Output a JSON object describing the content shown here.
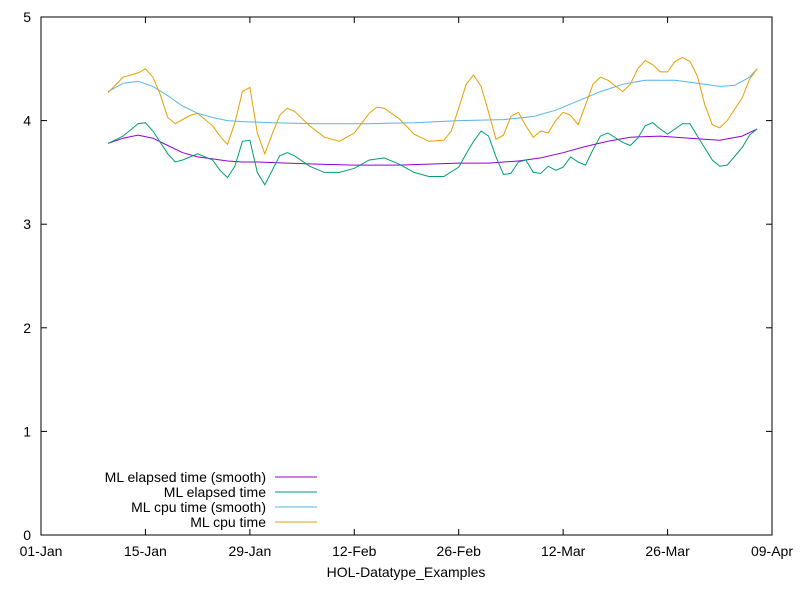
{
  "chart_data": {
    "type": "line",
    "xlabel": "HOL-Datatype_Examples",
    "ylabel": "",
    "x_type": "date",
    "xlim": [
      "2017-01-01",
      "2017-04-09"
    ],
    "ylim": [
      0,
      5
    ],
    "grid": false,
    "legend_position": "bottom-left",
    "x_ticks": [
      {
        "date": "2017-01-01",
        "label": "01-Jan"
      },
      {
        "date": "2017-01-15",
        "label": "15-Jan"
      },
      {
        "date": "2017-01-29",
        "label": "29-Jan"
      },
      {
        "date": "2017-02-12",
        "label": "12-Feb"
      },
      {
        "date": "2017-02-26",
        "label": "26-Feb"
      },
      {
        "date": "2017-03-12",
        "label": "12-Mar"
      },
      {
        "date": "2017-03-26",
        "label": "26-Mar"
      },
      {
        "date": "2017-04-09",
        "label": "09-Apr"
      }
    ],
    "y_ticks": [
      0,
      1,
      2,
      3,
      4,
      5
    ],
    "series": [
      {
        "name": "ML elapsed time (smooth)",
        "color": "#9400d3",
        "points": [
          [
            "2017-01-10",
            3.78
          ],
          [
            "2017-01-12",
            3.83
          ],
          [
            "2017-01-14",
            3.86
          ],
          [
            "2017-01-16",
            3.83
          ],
          [
            "2017-01-18",
            3.76
          ],
          [
            "2017-01-20",
            3.69
          ],
          [
            "2017-01-22",
            3.65
          ],
          [
            "2017-01-24",
            3.63
          ],
          [
            "2017-01-26",
            3.61
          ],
          [
            "2017-01-28",
            3.6
          ],
          [
            "2017-01-30",
            3.6
          ],
          [
            "2017-02-03",
            3.59
          ],
          [
            "2017-02-07",
            3.58
          ],
          [
            "2017-02-12",
            3.57
          ],
          [
            "2017-02-18",
            3.57
          ],
          [
            "2017-02-22",
            3.58
          ],
          [
            "2017-02-26",
            3.59
          ],
          [
            "2017-03-02",
            3.59
          ],
          [
            "2017-03-06",
            3.61
          ],
          [
            "2017-03-09",
            3.64
          ],
          [
            "2017-03-12",
            3.69
          ],
          [
            "2017-03-15",
            3.75
          ],
          [
            "2017-03-18",
            3.8
          ],
          [
            "2017-03-21",
            3.84
          ],
          [
            "2017-03-25",
            3.85
          ],
          [
            "2017-03-29",
            3.83
          ],
          [
            "2017-04-02",
            3.81
          ],
          [
            "2017-04-05",
            3.85
          ],
          [
            "2017-04-07",
            3.92
          ]
        ]
      },
      {
        "name": "ML elapsed time",
        "color": "#009e73",
        "points": [
          [
            "2017-01-10",
            3.78
          ],
          [
            "2017-01-12",
            3.85
          ],
          [
            "2017-01-14",
            3.97
          ],
          [
            "2017-01-15",
            3.98
          ],
          [
            "2017-01-16",
            3.9
          ],
          [
            "2017-01-18",
            3.68
          ],
          [
            "2017-01-19",
            3.6
          ],
          [
            "2017-01-20",
            3.62
          ],
          [
            "2017-01-22",
            3.68
          ],
          [
            "2017-01-24",
            3.62
          ],
          [
            "2017-01-25",
            3.52
          ],
          [
            "2017-01-26",
            3.45
          ],
          [
            "2017-01-27",
            3.56
          ],
          [
            "2017-01-28",
            3.8
          ],
          [
            "2017-01-29",
            3.81
          ],
          [
            "2017-01-30",
            3.5
          ],
          [
            "2017-01-31",
            3.38
          ],
          [
            "2017-02-01",
            3.52
          ],
          [
            "2017-02-02",
            3.66
          ],
          [
            "2017-02-03",
            3.69
          ],
          [
            "2017-02-04",
            3.66
          ],
          [
            "2017-02-06",
            3.56
          ],
          [
            "2017-02-08",
            3.5
          ],
          [
            "2017-02-10",
            3.5
          ],
          [
            "2017-02-12",
            3.54
          ],
          [
            "2017-02-14",
            3.62
          ],
          [
            "2017-02-16",
            3.64
          ],
          [
            "2017-02-18",
            3.58
          ],
          [
            "2017-02-20",
            3.5
          ],
          [
            "2017-02-22",
            3.46
          ],
          [
            "2017-02-24",
            3.46
          ],
          [
            "2017-02-26",
            3.55
          ],
          [
            "2017-02-27",
            3.68
          ],
          [
            "2017-02-28",
            3.8
          ],
          [
            "2017-03-01",
            3.9
          ],
          [
            "2017-03-02",
            3.85
          ],
          [
            "2017-03-03",
            3.65
          ],
          [
            "2017-03-04",
            3.48
          ],
          [
            "2017-03-05",
            3.49
          ],
          [
            "2017-03-06",
            3.6
          ],
          [
            "2017-03-07",
            3.62
          ],
          [
            "2017-03-08",
            3.5
          ],
          [
            "2017-03-09",
            3.49
          ],
          [
            "2017-03-10",
            3.56
          ],
          [
            "2017-03-11",
            3.52
          ],
          [
            "2017-03-12",
            3.55
          ],
          [
            "2017-03-13",
            3.65
          ],
          [
            "2017-03-14",
            3.6
          ],
          [
            "2017-03-15",
            3.57
          ],
          [
            "2017-03-16",
            3.72
          ],
          [
            "2017-03-17",
            3.85
          ],
          [
            "2017-03-18",
            3.88
          ],
          [
            "2017-03-20",
            3.79
          ],
          [
            "2017-03-21",
            3.76
          ],
          [
            "2017-03-22",
            3.83
          ],
          [
            "2017-03-23",
            3.95
          ],
          [
            "2017-03-24",
            3.98
          ],
          [
            "2017-03-25",
            3.92
          ],
          [
            "2017-03-26",
            3.87
          ],
          [
            "2017-03-28",
            3.97
          ],
          [
            "2017-03-29",
            3.97
          ],
          [
            "2017-03-30",
            3.85
          ],
          [
            "2017-04-01",
            3.62
          ],
          [
            "2017-04-02",
            3.56
          ],
          [
            "2017-04-03",
            3.57
          ],
          [
            "2017-04-05",
            3.74
          ],
          [
            "2017-04-06",
            3.86
          ],
          [
            "2017-04-07",
            3.92
          ]
        ]
      },
      {
        "name": "ML cpu time (smooth)",
        "color": "#56b4e9",
        "points": [
          [
            "2017-01-10",
            4.28
          ],
          [
            "2017-01-12",
            4.36
          ],
          [
            "2017-01-14",
            4.38
          ],
          [
            "2017-01-16",
            4.33
          ],
          [
            "2017-01-18",
            4.24
          ],
          [
            "2017-01-20",
            4.14
          ],
          [
            "2017-01-22",
            4.07
          ],
          [
            "2017-01-24",
            4.03
          ],
          [
            "2017-01-26",
            4.0
          ],
          [
            "2017-01-28",
            3.99
          ],
          [
            "2017-02-01",
            3.98
          ],
          [
            "2017-02-07",
            3.97
          ],
          [
            "2017-02-14",
            3.97
          ],
          [
            "2017-02-20",
            3.98
          ],
          [
            "2017-02-26",
            4.0
          ],
          [
            "2017-03-04",
            4.01
          ],
          [
            "2017-03-08",
            4.04
          ],
          [
            "2017-03-11",
            4.1
          ],
          [
            "2017-03-14",
            4.19
          ],
          [
            "2017-03-17",
            4.28
          ],
          [
            "2017-03-20",
            4.35
          ],
          [
            "2017-03-23",
            4.39
          ],
          [
            "2017-03-27",
            4.39
          ],
          [
            "2017-03-30",
            4.36
          ],
          [
            "2017-04-02",
            4.33
          ],
          [
            "2017-04-04",
            4.34
          ],
          [
            "2017-04-06",
            4.42
          ],
          [
            "2017-04-07",
            4.5
          ]
        ]
      },
      {
        "name": "ML cpu time",
        "color": "#e69f00",
        "points": [
          [
            "2017-01-10",
            4.27
          ],
          [
            "2017-01-12",
            4.42
          ],
          [
            "2017-01-14",
            4.46
          ],
          [
            "2017-01-15",
            4.5
          ],
          [
            "2017-01-16",
            4.42
          ],
          [
            "2017-01-17",
            4.25
          ],
          [
            "2017-01-18",
            4.03
          ],
          [
            "2017-01-19",
            3.97
          ],
          [
            "2017-01-21",
            4.05
          ],
          [
            "2017-01-22",
            4.07
          ],
          [
            "2017-01-24",
            3.95
          ],
          [
            "2017-01-25",
            3.85
          ],
          [
            "2017-01-26",
            3.77
          ],
          [
            "2017-01-27",
            3.98
          ],
          [
            "2017-01-28",
            4.28
          ],
          [
            "2017-01-29",
            4.32
          ],
          [
            "2017-01-30",
            3.88
          ],
          [
            "2017-01-31",
            3.68
          ],
          [
            "2017-02-01",
            3.87
          ],
          [
            "2017-02-02",
            4.05
          ],
          [
            "2017-02-03",
            4.12
          ],
          [
            "2017-02-04",
            4.09
          ],
          [
            "2017-02-06",
            3.95
          ],
          [
            "2017-02-08",
            3.84
          ],
          [
            "2017-02-10",
            3.8
          ],
          [
            "2017-02-12",
            3.88
          ],
          [
            "2017-02-14",
            4.07
          ],
          [
            "2017-02-15",
            4.13
          ],
          [
            "2017-02-16",
            4.12
          ],
          [
            "2017-02-18",
            4.02
          ],
          [
            "2017-02-20",
            3.87
          ],
          [
            "2017-02-22",
            3.8
          ],
          [
            "2017-02-24",
            3.81
          ],
          [
            "2017-02-25",
            3.9
          ],
          [
            "2017-02-26",
            4.12
          ],
          [
            "2017-02-27",
            4.35
          ],
          [
            "2017-02-28",
            4.44
          ],
          [
            "2017-03-01",
            4.33
          ],
          [
            "2017-03-02",
            4.08
          ],
          [
            "2017-03-03",
            3.82
          ],
          [
            "2017-03-04",
            3.86
          ],
          [
            "2017-03-05",
            4.04
          ],
          [
            "2017-03-06",
            4.08
          ],
          [
            "2017-03-07",
            3.95
          ],
          [
            "2017-03-08",
            3.84
          ],
          [
            "2017-03-09",
            3.9
          ],
          [
            "2017-03-10",
            3.88
          ],
          [
            "2017-03-11",
            4.0
          ],
          [
            "2017-03-12",
            4.08
          ],
          [
            "2017-03-13",
            4.05
          ],
          [
            "2017-03-14",
            3.96
          ],
          [
            "2017-03-15",
            4.15
          ],
          [
            "2017-03-16",
            4.35
          ],
          [
            "2017-03-17",
            4.42
          ],
          [
            "2017-03-18",
            4.39
          ],
          [
            "2017-03-20",
            4.28
          ],
          [
            "2017-03-21",
            4.35
          ],
          [
            "2017-03-22",
            4.5
          ],
          [
            "2017-03-23",
            4.58
          ],
          [
            "2017-03-24",
            4.54
          ],
          [
            "2017-03-25",
            4.47
          ],
          [
            "2017-03-26",
            4.47
          ],
          [
            "2017-03-27",
            4.57
          ],
          [
            "2017-03-28",
            4.61
          ],
          [
            "2017-03-29",
            4.57
          ],
          [
            "2017-03-30",
            4.43
          ],
          [
            "2017-03-31",
            4.15
          ],
          [
            "2017-04-01",
            3.96
          ],
          [
            "2017-04-02",
            3.93
          ],
          [
            "2017-04-03",
            4.0
          ],
          [
            "2017-04-05",
            4.22
          ],
          [
            "2017-04-06",
            4.4
          ],
          [
            "2017-04-07",
            4.5
          ]
        ]
      }
    ]
  }
}
